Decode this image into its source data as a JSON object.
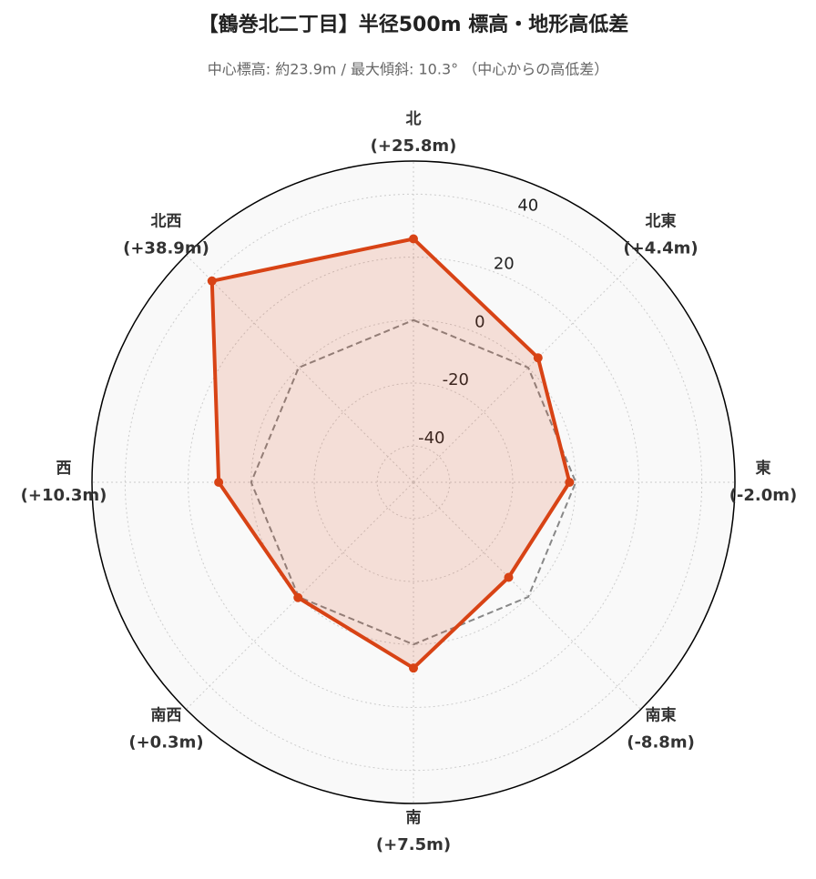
{
  "chart_data": {
    "type": "radar",
    "title": "【鶴巻北二丁目】半径500m 標高・地形高低差",
    "subtitle": "中心標高: 約23.9m / 最大傾斜: 10.3° （中心からの高低差）",
    "categories": [
      "北",
      "北東",
      "東",
      "南東",
      "南",
      "南西",
      "西",
      "北西"
    ],
    "series": [
      {
        "name": "高低差",
        "color": "#d84315",
        "values": [
          25.8,
          4.4,
          -2.0,
          -8.8,
          7.5,
          0.3,
          10.3,
          38.9
        ],
        "value_labels": [
          "(+25.8m)",
          "(+4.4m)",
          "(-2.0m)",
          "(-8.8m)",
          "(+7.5m)",
          "(+0.3m)",
          "(+10.3m)",
          "(+38.9m)"
        ]
      }
    ],
    "baseline": 0,
    "ylim": [
      -51.5,
      50.5
    ],
    "yticks": [
      -40,
      -20,
      0,
      20,
      40
    ],
    "grid": true
  }
}
